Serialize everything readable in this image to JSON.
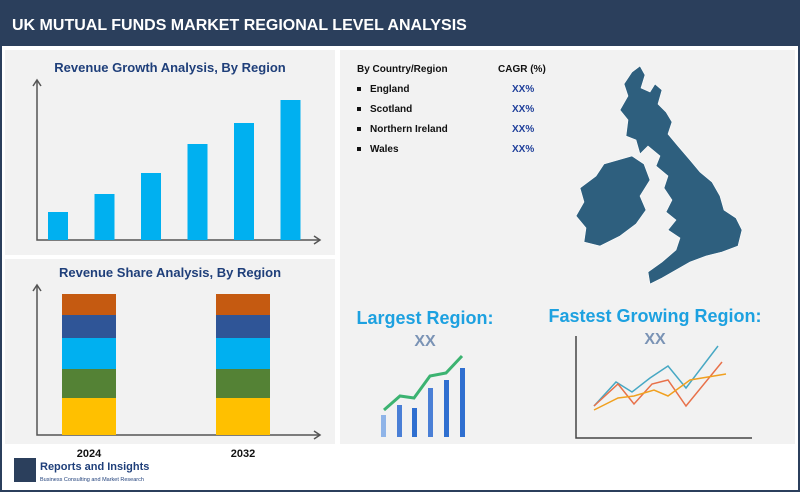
{
  "header": {
    "title": "UK MUTUAL FUNDS MARKET REGIONAL LEVEL ANALYSIS"
  },
  "growth_chart": {
    "type": "bar",
    "title": "Revenue Growth Analysis, By Region",
    "values": [
      28,
      46,
      67,
      96,
      117,
      140
    ],
    "color": "#00b0f0",
    "ylim": [
      0,
      160
    ]
  },
  "share_chart": {
    "type": "stacked-bar",
    "title": "Revenue Share Analysis, By Region",
    "categories": [
      "2024",
      "2032"
    ],
    "ylim": [
      0,
      150
    ],
    "series": [
      {
        "color": "#ffc000",
        "values": [
          37,
          37
        ]
      },
      {
        "color": "#548235",
        "values": [
          29,
          29
        ]
      },
      {
        "color": "#00b0f0",
        "values": [
          31,
          31
        ]
      },
      {
        "color": "#2f5597",
        "values": [
          23,
          23
        ]
      },
      {
        "color": "#c55a11",
        "values": [
          21,
          21
        ]
      }
    ]
  },
  "table": {
    "headers": [
      "By Country/Region",
      "CAGR (%)"
    ],
    "rows": [
      [
        "England",
        "XX%"
      ],
      [
        "Scotland",
        "XX%"
      ],
      [
        "Northern Ireland",
        "XX%"
      ],
      [
        "Wales",
        "XX%"
      ]
    ]
  },
  "largest_region": {
    "title": "Largest Region:",
    "value": "XX"
  },
  "fastest_region": {
    "title": "Fastest Growing Region:",
    "value": "XX"
  },
  "footer": {
    "brand": "Reports and Insights",
    "tagline": "Business Consulting and Market Research"
  }
}
